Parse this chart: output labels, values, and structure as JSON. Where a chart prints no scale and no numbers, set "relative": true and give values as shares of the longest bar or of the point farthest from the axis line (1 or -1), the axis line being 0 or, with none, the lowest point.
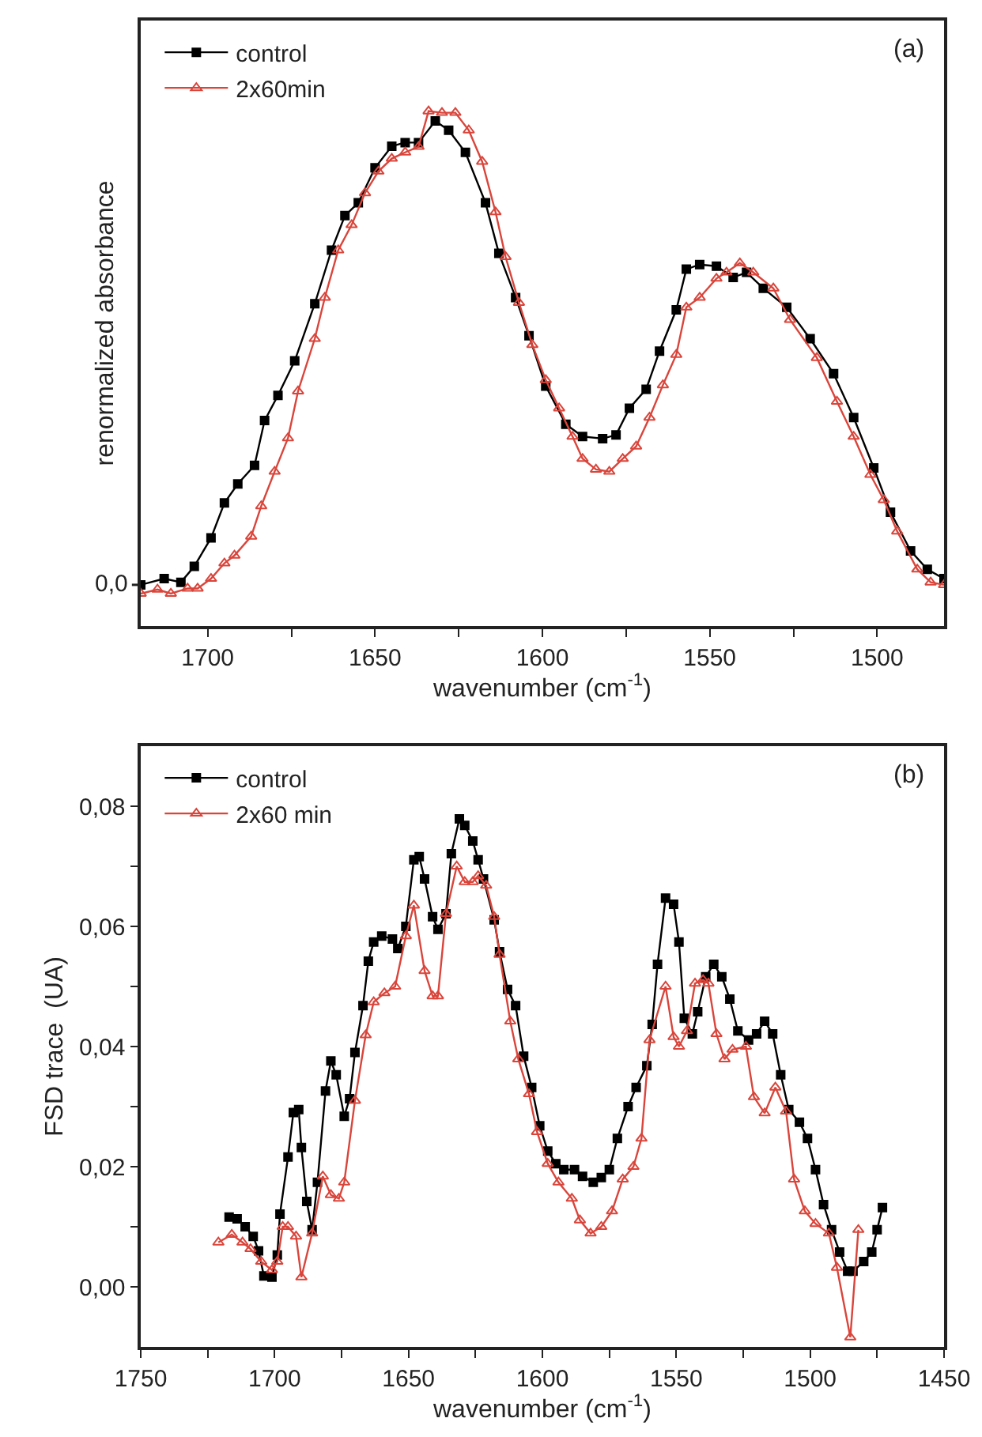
{
  "chart_data": [
    {
      "type": "line",
      "relative": true,
      "annotations": [
        "(a)",
        "0,0"
      ],
      "xlabel": "wavenumber (cm$^{-1}$)",
      "ylabel": "renormalized absorbance",
      "xlim": [
        1720,
        1480
      ],
      "xticks": [
        1700,
        {
          "value": 1675,
          "label": null
        },
        1650,
        {
          "value": 1625,
          "label": null
        },
        1600,
        {
          "value": 1575,
          "label": null
        },
        1550,
        {
          "value": 1525,
          "label": null
        },
        1500
      ],
      "legend": "top left",
      "grid": false,
      "line_style": "solid",
      "series": [
        {
          "name": "control",
          "color": "#000000",
          "marker": "square",
          "x": [
            1720,
            1713,
            1708,
            1704,
            1699,
            1695,
            1691,
            1686,
            1683,
            1679,
            1674,
            1668,
            1663,
            1659,
            1655,
            1650,
            1645,
            1641,
            1637,
            1632,
            1628,
            1623,
            1617,
            1613,
            1608,
            1604,
            1599,
            1593,
            1588,
            1582,
            1578,
            1574,
            1569,
            1565,
            1560,
            1557,
            1553,
            1548,
            1543,
            1539,
            1534,
            1527,
            1520,
            1513,
            1507,
            1501,
            1496,
            1490,
            1485,
            1480
          ],
          "values": [
            0.08,
            0.092,
            0.085,
            0.116,
            0.171,
            0.239,
            0.276,
            0.312,
            0.399,
            0.448,
            0.515,
            0.626,
            0.73,
            0.797,
            0.822,
            0.89,
            0.932,
            0.939,
            0.939,
            0.981,
            0.963,
            0.92,
            0.822,
            0.724,
            0.638,
            0.564,
            0.466,
            0.392,
            0.368,
            0.364,
            0.371,
            0.423,
            0.46,
            0.534,
            0.614,
            0.693,
            0.702,
            0.699,
            0.677,
            0.687,
            0.656,
            0.619,
            0.558,
            0.49,
            0.405,
            0.307,
            0.221,
            0.146,
            0.11,
            0.092
          ]
        },
        {
          "name": "2x60min",
          "color": "#d9453b",
          "marker": "triangle",
          "x": [
            1720,
            1715,
            1711,
            1706,
            1703,
            1699,
            1695,
            1692,
            1687,
            1684,
            1680,
            1676,
            1673,
            1668,
            1665,
            1661,
            1657,
            1653,
            1649,
            1645,
            1641,
            1637,
            1634,
            1630,
            1626,
            1622,
            1618,
            1614,
            1611,
            1607,
            1603,
            1599,
            1595,
            1591,
            1588,
            1584,
            1580,
            1576,
            1572,
            1568,
            1564,
            1560,
            1557,
            1553,
            1548,
            1545,
            1541,
            1537,
            1531,
            1526,
            1518,
            1512,
            1507,
            1502,
            1498,
            1494,
            1488,
            1484,
            1480
          ],
          "values": [
            0.063,
            0.071,
            0.063,
            0.073,
            0.073,
            0.092,
            0.122,
            0.137,
            0.174,
            0.233,
            0.3,
            0.365,
            0.456,
            0.558,
            0.638,
            0.73,
            0.779,
            0.841,
            0.883,
            0.908,
            0.92,
            0.931,
            1.0,
            0.997,
            0.997,
            0.963,
            0.902,
            0.804,
            0.717,
            0.628,
            0.546,
            0.478,
            0.423,
            0.368,
            0.325,
            0.304,
            0.3,
            0.325,
            0.349,
            0.405,
            0.468,
            0.527,
            0.619,
            0.638,
            0.675,
            0.687,
            0.705,
            0.687,
            0.656,
            0.595,
            0.521,
            0.436,
            0.368,
            0.294,
            0.245,
            0.184,
            0.11,
            0.085,
            0.08
          ]
        }
      ]
    },
    {
      "type": "line",
      "annotations": [
        "(b)"
      ],
      "xlabel": "wavenumber (cm$^{-1}$)",
      "ylabel": "FSD trace  (UA)",
      "xlim": [
        1750,
        1450
      ],
      "xticks": [
        1750,
        {
          "value": 1725,
          "label": null
        },
        1700,
        {
          "value": 1675,
          "label": null
        },
        1650,
        {
          "value": 1625,
          "label": null
        },
        1600,
        {
          "value": 1575,
          "label": null
        },
        1550,
        {
          "value": 1525,
          "label": null
        },
        1500,
        {
          "value": 1475,
          "label": null
        },
        1450
      ],
      "ylim": [
        -0.01,
        0.09
      ],
      "yticks": [
        {
          "value": 0,
          "label": "0,00"
        },
        {
          "value": 0.01,
          "label": null
        },
        {
          "value": 0.02,
          "label": "0,02"
        },
        {
          "value": 0.03,
          "label": null
        },
        {
          "value": 0.04,
          "label": "0,04"
        },
        {
          "value": 0.05,
          "label": null
        },
        {
          "value": 0.06,
          "label": "0,06"
        },
        {
          "value": 0.07,
          "label": null
        },
        {
          "value": 0.08,
          "label": "0,08"
        }
      ],
      "legend": "top left",
      "grid": false,
      "line_style": "solid",
      "series": [
        {
          "name": "control",
          "color": "#000000",
          "marker": "square",
          "x": [
            1717,
            1714,
            1711,
            1708,
            1706,
            1704,
            1701,
            1699,
            1698,
            1695,
            1693,
            1691,
            1690,
            1688,
            1686,
            1684,
            1681,
            1679,
            1677,
            1674,
            1672,
            1670,
            1667,
            1665,
            1663,
            1660,
            1656,
            1654,
            1651,
            1648,
            1646,
            1644,
            1641,
            1639,
            1636,
            1634,
            1631,
            1629,
            1626,
            1624,
            1622,
            1618,
            1616,
            1613,
            1610,
            1607,
            1604,
            1601,
            1598,
            1595,
            1592,
            1588,
            1585,
            1581,
            1578,
            1575,
            1572,
            1568,
            1565,
            1561,
            1559,
            1557,
            1554,
            1551,
            1549,
            1547,
            1544,
            1542,
            1539,
            1536,
            1533,
            1530,
            1527,
            1523,
            1520,
            1517,
            1514,
            1511,
            1508,
            1504,
            1501,
            1498,
            1495,
            1492,
            1489,
            1486,
            1484,
            1480,
            1477,
            1475,
            1473
          ],
          "values": [
            0.0116,
            0.0113,
            0.01,
            0.0084,
            0.006,
            0.0018,
            0.0016,
            0.0053,
            0.0121,
            0.0216,
            0.029,
            0.0295,
            0.0232,
            0.0142,
            0.0095,
            0.0174,
            0.0326,
            0.0376,
            0.0353,
            0.0284,
            0.0313,
            0.039,
            0.0468,
            0.0542,
            0.0574,
            0.0584,
            0.0579,
            0.0563,
            0.06,
            0.0711,
            0.0716,
            0.0679,
            0.0616,
            0.0595,
            0.0621,
            0.0721,
            0.0779,
            0.0768,
            0.0742,
            0.0711,
            0.0679,
            0.0611,
            0.0558,
            0.0495,
            0.0468,
            0.0384,
            0.0332,
            0.0268,
            0.0226,
            0.0205,
            0.0195,
            0.0195,
            0.0184,
            0.0174,
            0.0182,
            0.0195,
            0.0247,
            0.03,
            0.0332,
            0.0368,
            0.0437,
            0.0537,
            0.0647,
            0.0637,
            0.0574,
            0.0447,
            0.0421,
            0.0458,
            0.0516,
            0.0537,
            0.0516,
            0.0479,
            0.0426,
            0.0411,
            0.0421,
            0.0442,
            0.0421,
            0.0353,
            0.0295,
            0.0274,
            0.0247,
            0.0195,
            0.0137,
            0.0095,
            0.0058,
            0.0026,
            0.0026,
            0.0042,
            0.0058,
            0.0095,
            0.0132
          ]
        },
        {
          "name": "2x60 min",
          "color": "#d9453b",
          "marker": "triangle",
          "x": [
            1721,
            1716,
            1712,
            1709,
            1705,
            1701,
            1699,
            1697,
            1695,
            1692,
            1690,
            1686,
            1682,
            1679,
            1676,
            1674,
            1670,
            1666,
            1663,
            1659,
            1655,
            1651,
            1648,
            1644,
            1641,
            1639,
            1636,
            1632,
            1629,
            1626,
            1624,
            1621,
            1618,
            1616,
            1612,
            1609,
            1605,
            1602,
            1598,
            1594,
            1589,
            1586,
            1582,
            1578,
            1574,
            1570,
            1566,
            1563,
            1560,
            1554,
            1551,
            1549,
            1546,
            1543,
            1540,
            1538,
            1535,
            1532,
            1529,
            1524,
            1521,
            1517,
            1513,
            1509,
            1506,
            1502,
            1498,
            1493,
            1490,
            1485,
            1482
          ],
          "values": [
            0.0074,
            0.0087,
            0.0074,
            0.0063,
            0.0042,
            0.0028,
            0.0042,
            0.01,
            0.01,
            0.0084,
            0.0016,
            0.0089,
            0.0184,
            0.0153,
            0.0147,
            0.0174,
            0.031,
            0.0419,
            0.0474,
            0.0489,
            0.05,
            0.0584,
            0.0635,
            0.0526,
            0.0484,
            0.0484,
            0.0621,
            0.07,
            0.0674,
            0.0674,
            0.0684,
            0.0668,
            0.0616,
            0.0553,
            0.0442,
            0.0379,
            0.0321,
            0.0258,
            0.0205,
            0.0174,
            0.0147,
            0.0111,
            0.0089,
            0.01,
            0.0126,
            0.0179,
            0.02,
            0.0247,
            0.0411,
            0.05,
            0.0416,
            0.04,
            0.0426,
            0.0505,
            0.0511,
            0.0505,
            0.0421,
            0.0379,
            0.0395,
            0.04,
            0.0316,
            0.0289,
            0.0332,
            0.0292,
            0.0179,
            0.0126,
            0.0105,
            0.0089,
            0.0032,
            -0.0084,
            0.0095
          ]
        }
      ]
    }
  ]
}
